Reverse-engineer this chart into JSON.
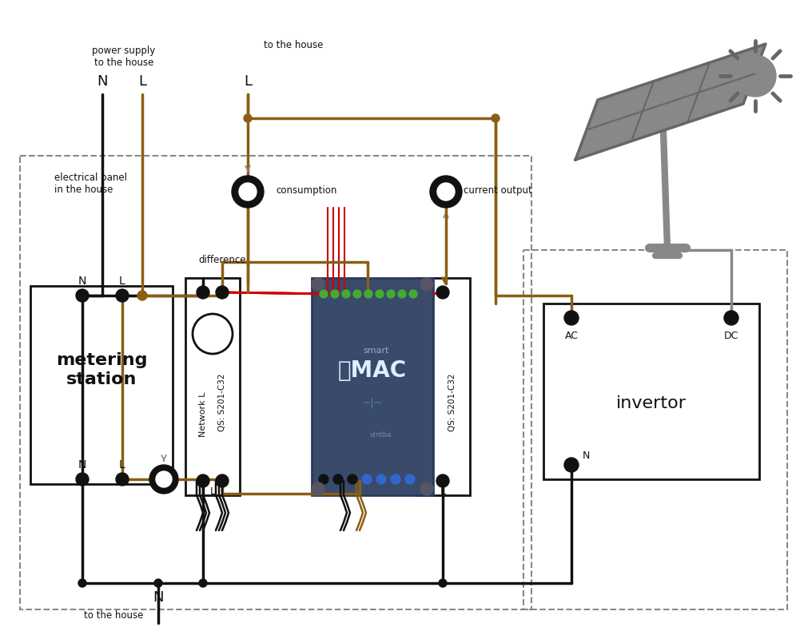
{
  "bg": "#ffffff",
  "bk": "#111111",
  "br": "#8B5E14",
  "rd": "#cc0000",
  "gy": "#888888",
  "mac_face": "#3a4a6a",
  "mac_edge": "#2a3a5a",
  "green_t": "#44aa33",
  "blue_t": "#3366cc",
  "solar_col": "#888888",
  "solar_dark": "#666666",
  "label_power": "power supply\nto the house",
  "label_tohouse_top": "to the house",
  "label_elec_panel": "electrical panel\nin the house",
  "label_consumption": "consumption",
  "label_current_out": "current output",
  "label_difference": "difference",
  "label_metering": "metering\nstation",
  "label_invertor": "invertor",
  "label_tohouse_bot": "to the house",
  "label_network_l": "Network L",
  "label_qs": "QS: S201-C32",
  "label_ac": "AC",
  "label_dc": "DC"
}
